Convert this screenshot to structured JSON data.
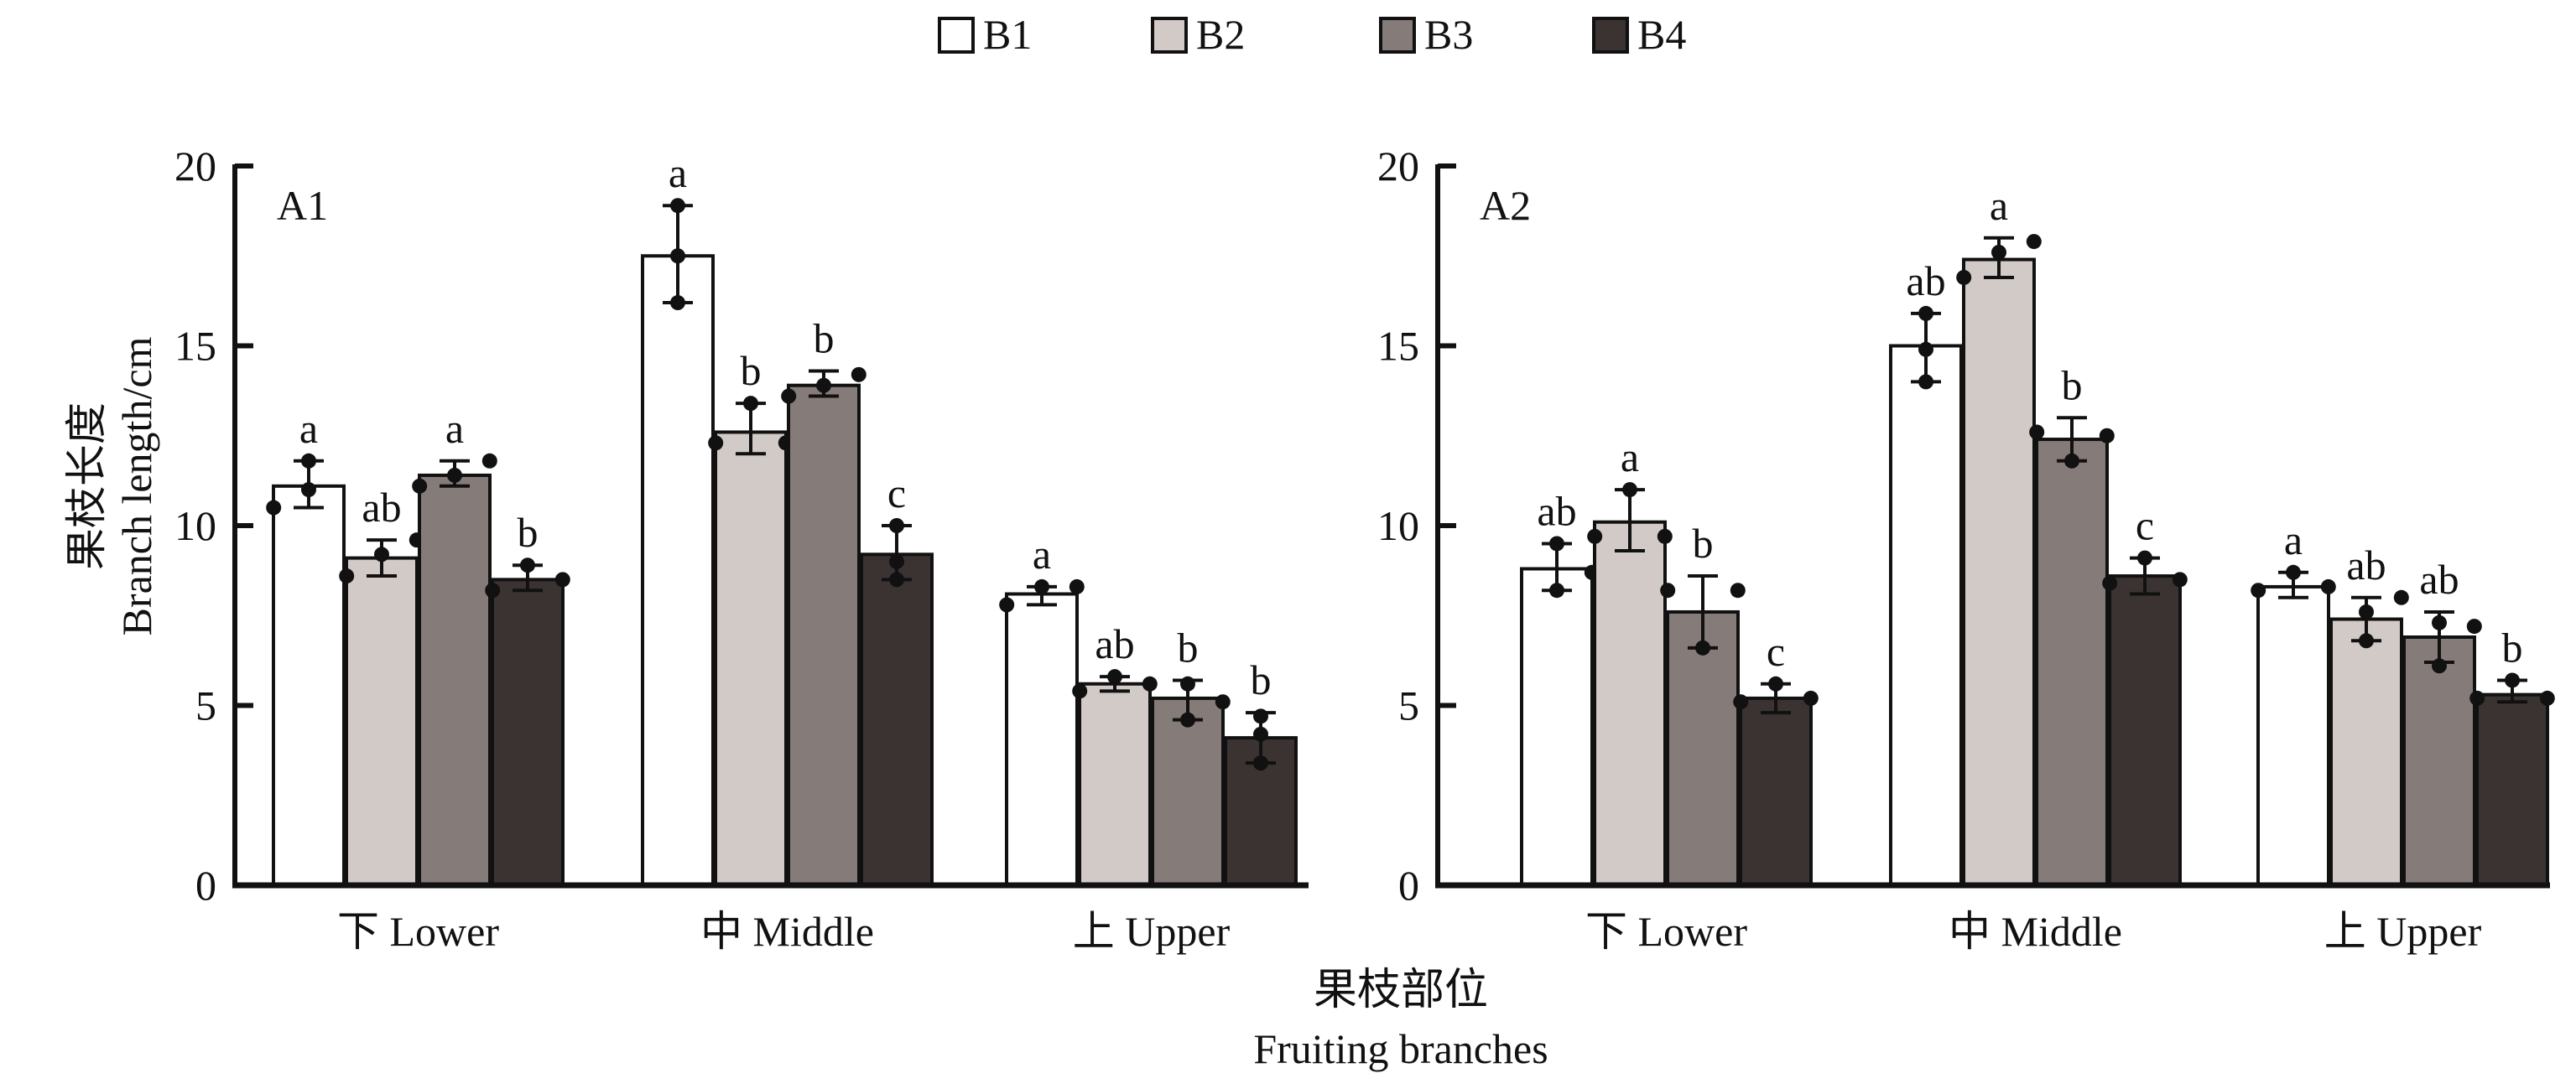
{
  "chart_data": [
    {
      "type": "bar",
      "panel_label": "A1",
      "categories": [
        "下 Lower",
        "中 Middle",
        "上 Upper"
      ],
      "ylim": [
        0,
        20
      ],
      "yticks": [
        0,
        5,
        10,
        15,
        20
      ],
      "series": [
        {
          "name": "B1",
          "values": [
            11.1,
            17.5,
            8.1
          ],
          "err_low": [
            10.5,
            16.2,
            7.8
          ],
          "err_high": [
            11.8,
            18.9,
            8.3
          ],
          "letters": [
            "a",
            "a",
            "a"
          ],
          "points": [
            [
              10.5,
              11.0,
              11.8
            ],
            [
              16.2,
              17.5,
              18.9
            ],
            [
              7.8,
              8.3,
              8.3
            ]
          ]
        },
        {
          "name": "B2",
          "values": [
            9.1,
            12.6,
            5.6
          ],
          "err_low": [
            8.6,
            12.0,
            5.4
          ],
          "err_high": [
            9.6,
            13.4,
            5.8
          ],
          "letters": [
            "ab",
            "b",
            "ab"
          ],
          "points": [
            [
              8.6,
              9.2,
              9.6
            ],
            [
              12.3,
              13.4,
              12.3
            ],
            [
              5.4,
              5.8,
              5.6
            ]
          ]
        },
        {
          "name": "B3",
          "values": [
            11.4,
            13.9,
            5.2
          ],
          "err_low": [
            11.1,
            13.6,
            4.6
          ],
          "err_high": [
            11.8,
            14.3,
            5.7
          ],
          "letters": [
            "a",
            "b",
            "b"
          ],
          "points": [
            [
              11.1,
              11.4,
              11.8
            ],
            [
              13.6,
              13.9,
              14.2
            ],
            [
              4.6,
              5.6,
              5.1
            ]
          ]
        },
        {
          "name": "B4",
          "values": [
            8.5,
            9.2,
            4.1
          ],
          "err_low": [
            8.2,
            8.5,
            3.4
          ],
          "err_high": [
            8.9,
            10.0,
            4.8
          ],
          "letters": [
            "b",
            "c",
            "b"
          ],
          "points": [
            [
              8.2,
              8.9,
              8.5
            ],
            [
              8.5,
              9.0,
              10.0
            ],
            [
              3.4,
              4.2,
              4.7
            ]
          ]
        }
      ]
    },
    {
      "type": "bar",
      "panel_label": "A2",
      "categories": [
        "下 Lower",
        "中 Middle",
        "上 Upper"
      ],
      "ylim": [
        0,
        20
      ],
      "yticks": [
        0,
        5,
        10,
        15,
        20
      ],
      "series": [
        {
          "name": "B1",
          "values": [
            8.8,
            15.0,
            8.3
          ],
          "err_low": [
            8.2,
            14.0,
            8.0
          ],
          "err_high": [
            9.5,
            15.9,
            8.7
          ],
          "letters": [
            "ab",
            "a b",
            "a"
          ],
          "points": [
            [
              8.2,
              9.5,
              8.7
            ],
            [
              14.0,
              14.9,
              15.9
            ],
            [
              8.2,
              8.7,
              8.3
            ]
          ]
        },
        {
          "name": "B2",
          "values": [
            10.1,
            17.4,
            7.4
          ],
          "err_low": [
            9.3,
            16.9,
            6.8
          ],
          "err_high": [
            11.0,
            18.0,
            8.0
          ],
          "letters": [
            "a",
            "a",
            "ab"
          ],
          "points": [
            [
              9.7,
              11.0,
              9.7
            ],
            [
              16.9,
              17.6,
              17.9
            ],
            [
              6.8,
              7.6,
              8.0
            ]
          ]
        },
        {
          "name": "B3",
          "values": [
            7.6,
            12.4,
            6.9
          ],
          "err_low": [
            6.6,
            11.8,
            6.2
          ],
          "err_high": [
            8.6,
            13.0,
            7.6
          ],
          "letters": [
            "b",
            "b",
            "ab"
          ],
          "points": [
            [
              8.2,
              6.6,
              8.2
            ],
            [
              12.6,
              11.8,
              12.5
            ],
            [
              6.1,
              7.3,
              7.2
            ]
          ]
        },
        {
          "name": "B4",
          "values": [
            5.2,
            8.6,
            5.3
          ],
          "err_low": [
            4.8,
            8.1,
            5.1
          ],
          "err_high": [
            5.6,
            9.1,
            5.7
          ],
          "letters": [
            "c",
            "c",
            "b"
          ],
          "points": [
            [
              5.1,
              5.6,
              5.2
            ],
            [
              8.4,
              9.1,
              8.5
            ],
            [
              5.2,
              5.7,
              5.2
            ]
          ]
        }
      ]
    }
  ],
  "legend": [
    {
      "label": "B1",
      "color": "#ffffff"
    },
    {
      "label": "B2",
      "color": "#d1cac7"
    },
    {
      "label": "B3",
      "color": "#857b79"
    },
    {
      "label": "B4",
      "color": "#3b3332"
    }
  ],
  "ylabel_cn": "果枝长度",
  "ylabel_en": "Branch length/cm",
  "xlabel_cn": "果枝部位",
  "xlabel_en": "Fruiting branches"
}
